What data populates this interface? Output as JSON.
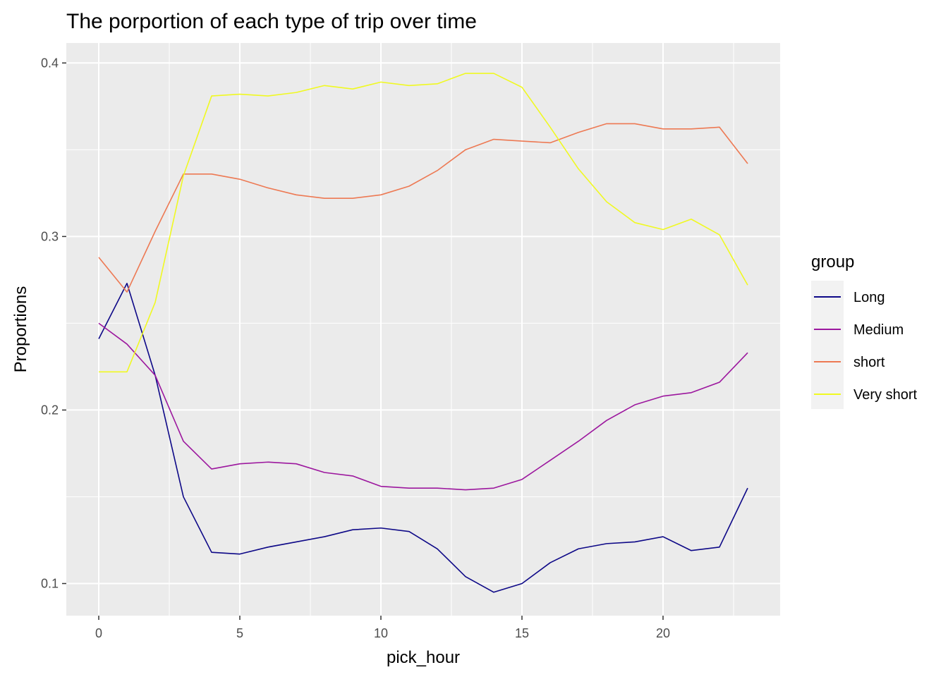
{
  "chart_data": {
    "type": "line",
    "title": "The porportion of each type of trip over time",
    "xlabel": "pick_hour",
    "ylabel": "Proportions",
    "xlim": [
      -1.15,
      24.15
    ],
    "ylim": [
      0.0815,
      0.4115
    ],
    "x_ticks": [
      0,
      5,
      10,
      15,
      20
    ],
    "x_tick_labels": [
      "0",
      "5",
      "10",
      "15",
      "20"
    ],
    "y_ticks": [
      0.1,
      0.2,
      0.3,
      0.4
    ],
    "y_tick_labels": [
      "0.1",
      "0.2",
      "0.3",
      "0.4"
    ],
    "grid": true,
    "legend_title": "group",
    "legend_position": "right",
    "x": [
      0,
      1,
      2,
      3,
      4,
      5,
      6,
      7,
      8,
      9,
      10,
      11,
      12,
      13,
      14,
      15,
      16,
      17,
      18,
      19,
      20,
      21,
      22,
      23
    ],
    "series": [
      {
        "name": "Long",
        "color": "#0D0887",
        "values": [
          0.241,
          0.273,
          0.22,
          0.15,
          0.118,
          0.117,
          0.121,
          0.124,
          0.127,
          0.131,
          0.132,
          0.13,
          0.12,
          0.104,
          0.095,
          0.1,
          0.112,
          0.12,
          0.123,
          0.124,
          0.127,
          0.119,
          0.121,
          0.155
        ]
      },
      {
        "name": "Medium",
        "color": "#9C179E",
        "values": [
          0.25,
          0.238,
          0.22,
          0.182,
          0.166,
          0.169,
          0.17,
          0.169,
          0.164,
          0.162,
          0.156,
          0.155,
          0.155,
          0.154,
          0.155,
          0.16,
          0.171,
          0.182,
          0.194,
          0.203,
          0.208,
          0.21,
          0.216,
          0.233
        ]
      },
      {
        "name": "short",
        "color": "#ED7953",
        "values": [
          0.288,
          0.268,
          0.303,
          0.336,
          0.336,
          0.333,
          0.328,
          0.324,
          0.322,
          0.322,
          0.324,
          0.329,
          0.338,
          0.35,
          0.356,
          0.355,
          0.354,
          0.36,
          0.365,
          0.365,
          0.362,
          0.362,
          0.363,
          0.342
        ]
      },
      {
        "name": "Very short",
        "color": "#F0F921",
        "values": [
          0.222,
          0.222,
          0.262,
          0.335,
          0.381,
          0.382,
          0.381,
          0.383,
          0.387,
          0.385,
          0.389,
          0.387,
          0.388,
          0.394,
          0.394,
          0.386,
          0.363,
          0.339,
          0.32,
          0.308,
          0.304,
          0.31,
          0.301,
          0.272
        ]
      }
    ]
  }
}
